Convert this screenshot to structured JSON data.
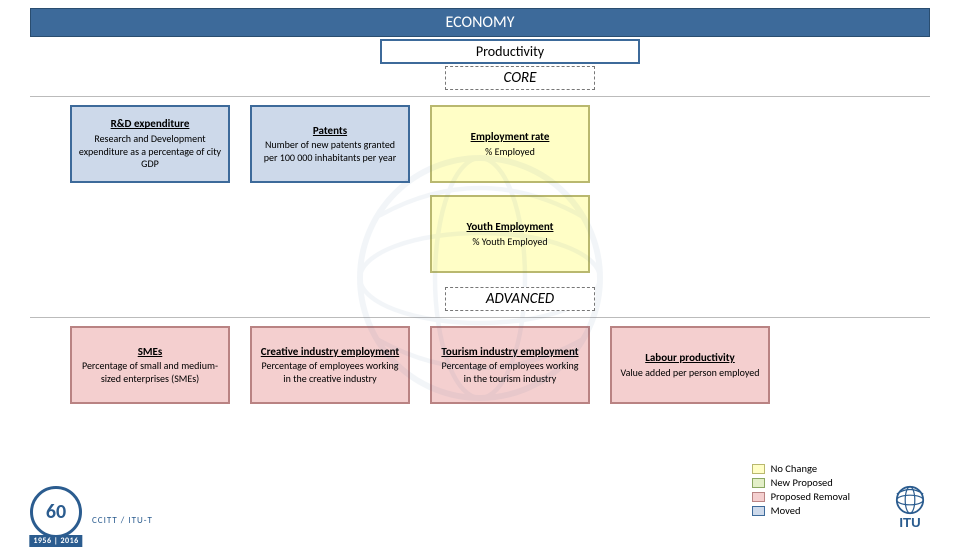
{
  "colors": {
    "header_bg": "#3d6a9a",
    "header_border": "#2a4d6f",
    "no_change_fill": "#fffec6",
    "no_change_border": "#b9b86f",
    "new_proposed_fill": "#e3efc8",
    "new_proposed_border": "#8aa862",
    "proposed_removal_fill": "#f4cfcf",
    "proposed_removal_border": "#b98383",
    "moved_fill": "#cdd9ea",
    "moved_border": "#3d6a9a"
  },
  "header": {
    "title": "ECONOMY"
  },
  "subheader": {
    "title": "Productivity"
  },
  "sections": {
    "core": {
      "label": "CORE"
    },
    "advanced": {
      "label": "ADVANCED"
    }
  },
  "core_cards": [
    {
      "title": "R&D expenditure",
      "desc": "Research and Development expenditure as a percentage of city GDP",
      "status": "moved"
    },
    {
      "title": "Patents",
      "desc": "Number of new patents granted per 100 000 inhabitants per year",
      "status": "moved"
    },
    {
      "title": "Employment rate",
      "desc": "% Employed",
      "status": "no_change"
    }
  ],
  "core_cards_row2": [
    {
      "title": "Youth Employment",
      "desc": "% Youth Employed",
      "status": "no_change"
    }
  ],
  "advanced_cards": [
    {
      "title": "SMEs",
      "desc": "Percentage of small and medium-sized enterprises (SMEs)",
      "status": "proposed_removal"
    },
    {
      "title": "Creative industry employment",
      "desc": "Percentage of employees working in the creative industry",
      "status": "proposed_removal"
    },
    {
      "title": "Tourism industry employment",
      "desc": "Percentage of employees working in the tourism industry",
      "status": "proposed_removal"
    },
    {
      "title": "Labour productivity",
      "desc": "Value added per person employed",
      "status": "proposed_removal"
    }
  ],
  "legend": [
    {
      "label": "No Change",
      "fill": "#fffec6",
      "border": "#b9b86f"
    },
    {
      "label": "New Proposed",
      "fill": "#e3efc8",
      "border": "#8aa862"
    },
    {
      "label": "Proposed Removal",
      "fill": "#f4cfcf",
      "border": "#b98383"
    },
    {
      "label": "Moved",
      "fill": "#cdd9ea",
      "border": "#3d6a9a"
    }
  ],
  "footer": {
    "anniversary_number": "60",
    "years": "1956 | 2016",
    "org_name": "CCITT / ITU-T",
    "itu_label": "ITU"
  }
}
